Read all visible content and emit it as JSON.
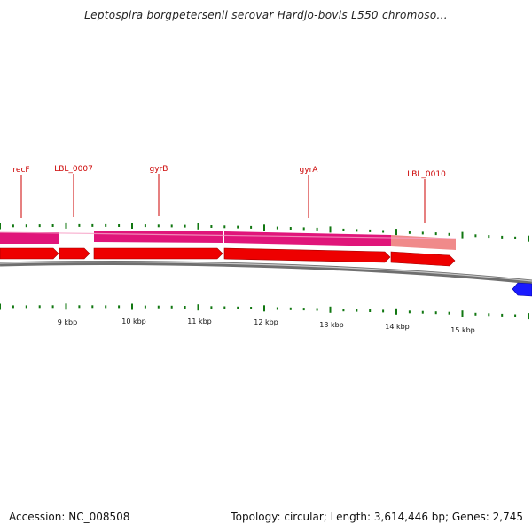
{
  "header": {
    "title": "Leptospira borgpetersenii serovar Hardjo-bovis L550 chromoso..."
  },
  "footer": {
    "accession": "Accession: NC_008508",
    "stats": "Topology: circular; Length: 3,614,446 bp; Genes: 2,745"
  },
  "colors": {
    "gene_label": "#cc0000",
    "cds_arrow": "#ee0000",
    "gene_band": "#e0157a",
    "gene_band_faded": "#f08a8a",
    "backbone": "#777777",
    "tick": "#117711",
    "reverse_feature": "#1a1aff"
  },
  "genes": [
    {
      "name": "recF"
    },
    {
      "name": "LBL_0007"
    },
    {
      "name": "gyrB"
    },
    {
      "name": "gyrA"
    },
    {
      "name": "LBL_0010"
    }
  ],
  "scale": {
    "unit": "kbp",
    "labels": [
      "9 kbp",
      "10 kbp",
      "11 kbp",
      "12 kbp",
      "13 kbp",
      "14 kbp",
      "15 kbp"
    ]
  }
}
